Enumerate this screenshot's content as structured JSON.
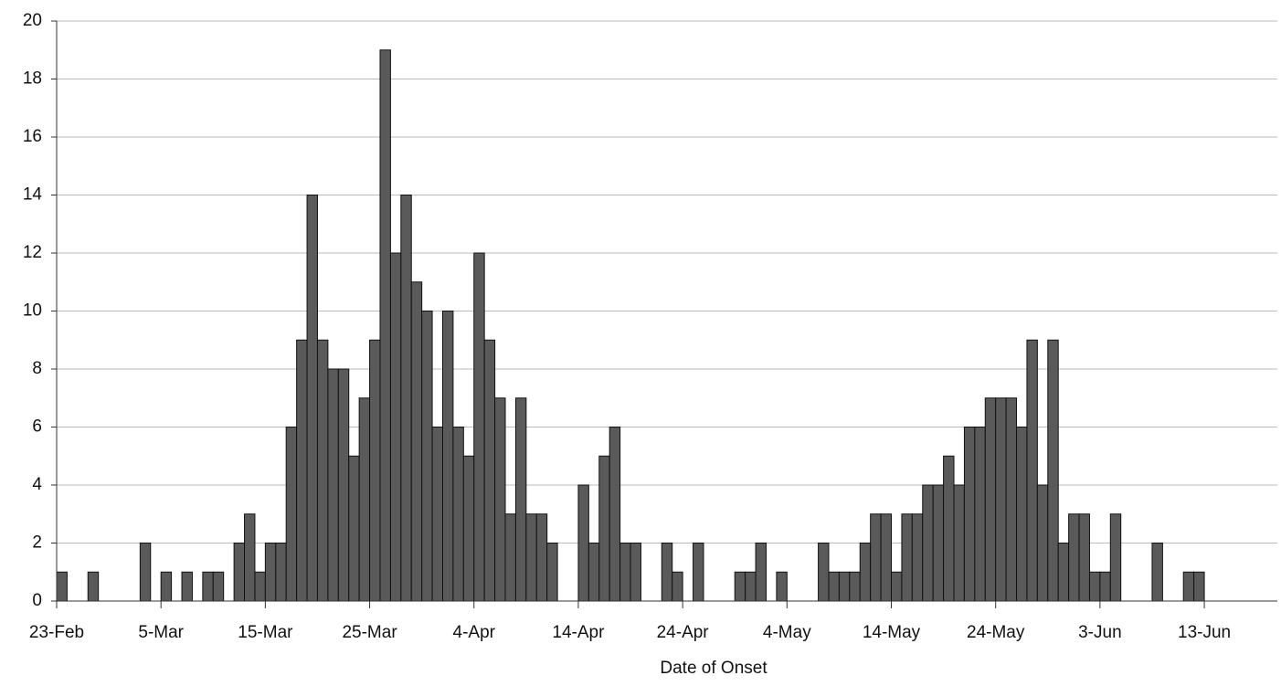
{
  "chart_data": {
    "type": "bar",
    "xlabel": "Date of Onset",
    "categories": [
      "23-Feb",
      null,
      null,
      null,
      null,
      null,
      null,
      null,
      null,
      null,
      "5-Mar",
      null,
      null,
      null,
      null,
      null,
      null,
      null,
      null,
      null,
      "15-Mar",
      null,
      null,
      null,
      null,
      null,
      null,
      null,
      null,
      null,
      "25-Mar",
      null,
      null,
      null,
      null,
      null,
      null,
      null,
      null,
      null,
      "4-Apr",
      null,
      null,
      null,
      null,
      null,
      null,
      null,
      null,
      null,
      "14-Apr",
      null,
      null,
      null,
      null,
      null,
      null,
      null,
      null,
      null,
      "24-Apr",
      null,
      null,
      null,
      null,
      null,
      null,
      null,
      null,
      null,
      "4-May",
      null,
      null,
      null,
      null,
      null,
      null,
      null,
      null,
      null,
      "14-May",
      null,
      null,
      null,
      null,
      null,
      null,
      null,
      null,
      null,
      "24-May",
      null,
      null,
      null,
      null,
      null,
      null,
      null,
      null,
      null,
      "3-Jun",
      null,
      null,
      null,
      null,
      null,
      null,
      null,
      null,
      null,
      "13-Jun",
      null,
      null,
      null,
      null,
      null,
      null
    ],
    "values": [
      1,
      0,
      0,
      1,
      0,
      0,
      0,
      0,
      2,
      0,
      1,
      0,
      1,
      0,
      1,
      1,
      0,
      2,
      3,
      1,
      2,
      2,
      6,
      9,
      14,
      9,
      8,
      8,
      5,
      7,
      9,
      19,
      12,
      14,
      11,
      10,
      6,
      10,
      6,
      5,
      12,
      9,
      7,
      3,
      7,
      3,
      3,
      2,
      0,
      0,
      4,
      2,
      5,
      6,
      2,
      2,
      0,
      0,
      2,
      1,
      0,
      2,
      0,
      0,
      0,
      1,
      1,
      2,
      0,
      1,
      0,
      0,
      0,
      2,
      1,
      1,
      1,
      2,
      3,
      3,
      1,
      3,
      3,
      4,
      4,
      5,
      4,
      6,
      6,
      7,
      7,
      7,
      6,
      9,
      4,
      9,
      2,
      3,
      3,
      1,
      1,
      3,
      0,
      0,
      0,
      2,
      0,
      0,
      1,
      1,
      0,
      0,
      0,
      0,
      0,
      0,
      0
    ],
    "color": "#5a5a5a",
    "ylim": [
      0,
      20
    ],
    "yticks": [
      0,
      2,
      4,
      6,
      8,
      10,
      12,
      14,
      16,
      18,
      20
    ],
    "grid": true
  }
}
